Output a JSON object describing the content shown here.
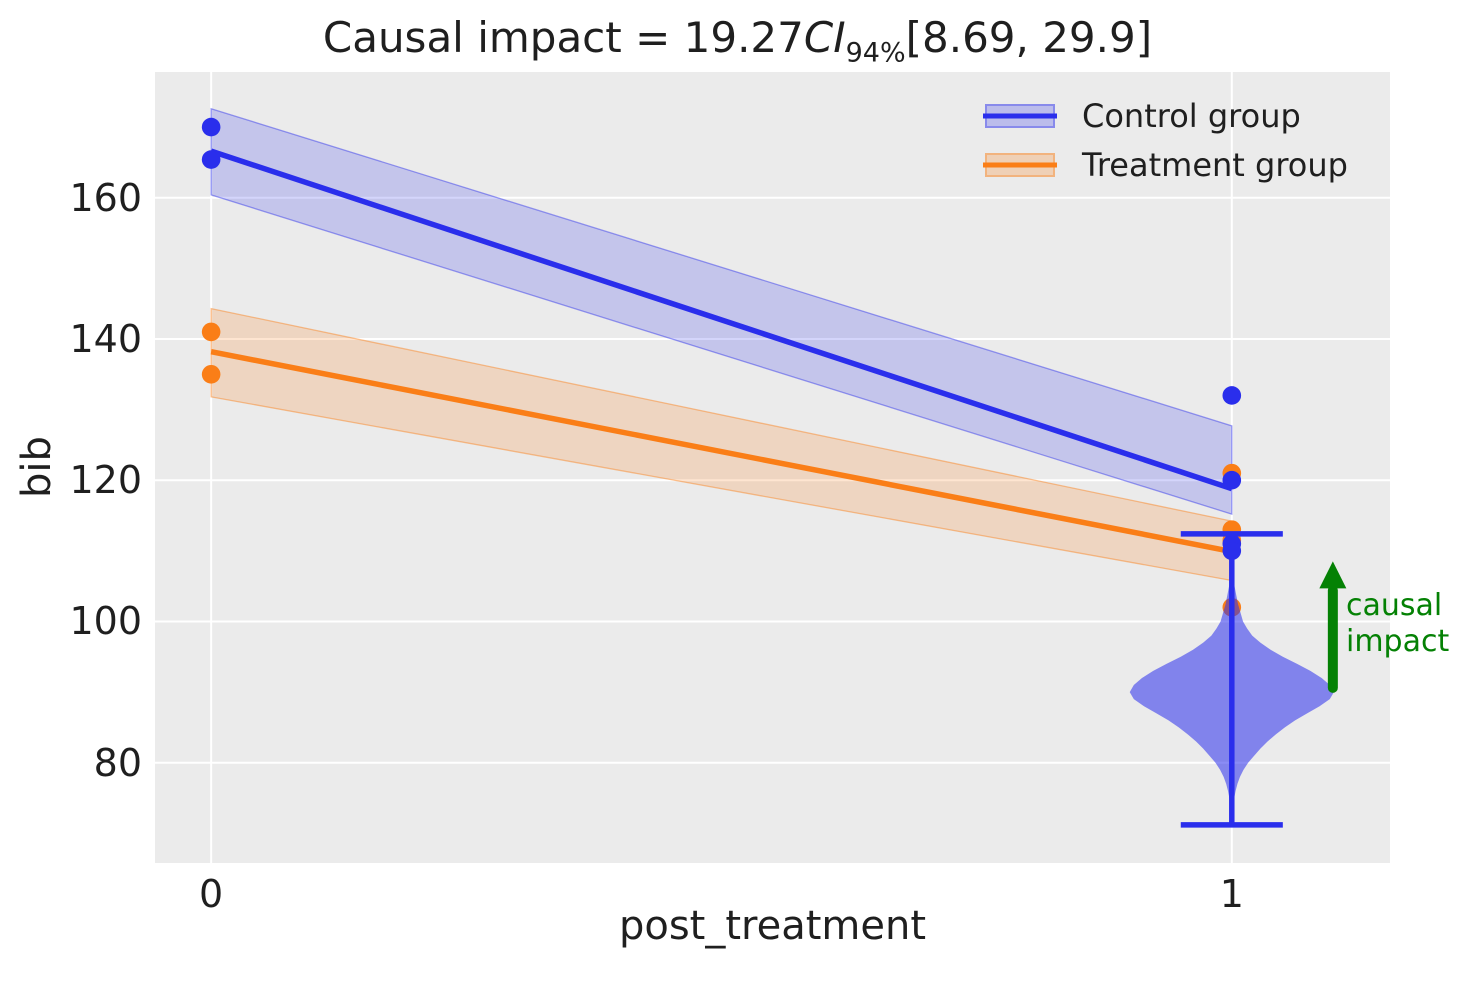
{
  "figure": {
    "background": "#ffffff",
    "plot_background": "#ebebeb",
    "grid_color": "#ffffff",
    "text_color": "#1f1f1f"
  },
  "title": {
    "prefix": "Causal impact = 19.27",
    "ci": "CI",
    "ci_subscript": "94%",
    "interval": "[8.69, 29.9]"
  },
  "axes": {
    "xlabel": "post_treatment",
    "ylabel": "bib"
  },
  "legend": {
    "items": [
      {
        "label": "Control group",
        "color": "#2a2eec"
      },
      {
        "label": "Treatment group",
        "color": "#fa7e17"
      }
    ]
  },
  "annotation": {
    "lines": [
      "causal",
      "impact"
    ],
    "color": "#048104"
  },
  "chart_data": {
    "type": "line",
    "title": "Causal impact = 19.27 CI_94% [8.69, 29.9]",
    "xlabel": "post_treatment",
    "ylabel": "bib",
    "xlim": [
      -0.055,
      1.155
    ],
    "ylim": [
      65.8,
      177.8
    ],
    "x_ticks": [
      0,
      1
    ],
    "y_ticks": [
      80,
      100,
      120,
      140,
      160
    ],
    "grid": true,
    "legend_position": "upper right",
    "series": [
      {
        "name": "Control group",
        "color": "#2a2eec",
        "x": [
          0,
          1
        ],
        "y": [
          166.6,
          118.8
        ],
        "ci_upper": [
          172.6,
          127.7
        ],
        "ci_lower": [
          160.4,
          115.2
        ],
        "band_alpha": 0.2
      },
      {
        "name": "Treatment group",
        "color": "#fa7e17",
        "x": [
          0,
          1
        ],
        "y": [
          138.2,
          109.9
        ],
        "ci_upper": [
          144.3,
          114.2
        ],
        "ci_lower": [
          131.8,
          105.8
        ],
        "band_alpha": 0.2
      }
    ],
    "scatter": [
      {
        "name": "Treatment group",
        "color": "#fa7e17",
        "points": [
          [
            0,
            141
          ],
          [
            0,
            135
          ],
          [
            1,
            121
          ],
          [
            1,
            113
          ],
          [
            1,
            111.5
          ],
          [
            1,
            102
          ]
        ]
      },
      {
        "name": "Control group",
        "color": "#2a2eec",
        "points": [
          [
            0,
            170
          ],
          [
            0,
            165.4
          ],
          [
            1,
            132
          ],
          [
            1,
            120
          ],
          [
            1,
            111
          ],
          [
            1,
            110
          ]
        ]
      }
    ],
    "counterfactual_violin": {
      "x": 1,
      "color": "#2a2eec",
      "fill_alpha": 0.55,
      "mean": 90.5,
      "whisker_top": 112.4,
      "whisker_bottom": 71.2,
      "cap_halfwidth": 0.05,
      "max_halfwidth": 0.1,
      "profile": [
        [
          107,
          0.01
        ],
        [
          105.5,
          0.02
        ],
        [
          104,
          0.04
        ],
        [
          102.5,
          0.06
        ],
        [
          101,
          0.09
        ],
        [
          100,
          0.11
        ],
        [
          99,
          0.15
        ],
        [
          98,
          0.2
        ],
        [
          97,
          0.28
        ],
        [
          96,
          0.38
        ],
        [
          95,
          0.5
        ],
        [
          94,
          0.64
        ],
        [
          93,
          0.77
        ],
        [
          92,
          0.88
        ],
        [
          91,
          0.96
        ],
        [
          90,
          1.0
        ],
        [
          89,
          0.96
        ],
        [
          88,
          0.86
        ],
        [
          87,
          0.74
        ],
        [
          86,
          0.62
        ],
        [
          85,
          0.52
        ],
        [
          84,
          0.43
        ],
        [
          83,
          0.35
        ],
        [
          82,
          0.28
        ],
        [
          81,
          0.22
        ],
        [
          80,
          0.16
        ],
        [
          79,
          0.115
        ],
        [
          78,
          0.08
        ],
        [
          77,
          0.055
        ],
        [
          76,
          0.037
        ],
        [
          75,
          0.024
        ],
        [
          74,
          0.015
        ],
        [
          73,
          0.009
        ],
        [
          72,
          0.005
        ],
        [
          71.3,
          0.003
        ]
      ]
    },
    "impact_arrow": {
      "x": 1.099,
      "from": 90.6,
      "to": 108.5,
      "color": "#048104",
      "label": "causal impact"
    }
  }
}
